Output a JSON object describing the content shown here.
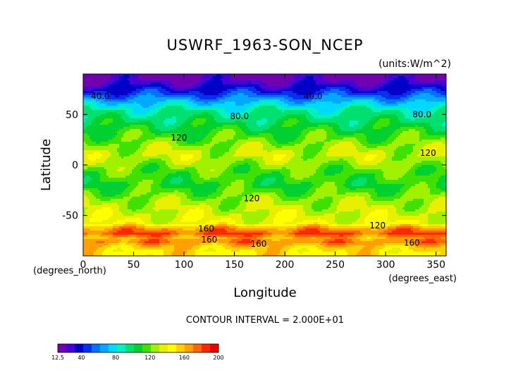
{
  "chart_data": {
    "type": "heatmap",
    "title": "USWRF_1963-SON_NCEP",
    "units": "(units:W/m^2)",
    "xlabel": "Longitude",
    "ylabel": "Latitude",
    "x_unit_label": "(degrees_east)",
    "y_unit_label": "(degrees_north)",
    "xlim": [
      0,
      360
    ],
    "ylim": [
      -90,
      90
    ],
    "xticks": [
      "0",
      "50",
      "100",
      "150",
      "200",
      "250",
      "300",
      "350"
    ],
    "yticks": [
      "50",
      "0",
      "-50"
    ],
    "footer": "CONTOUR INTERVAL = 2.000E+01",
    "contour_labels": [
      {
        "text": "40.0",
        "lon": 17,
        "lat": 68
      },
      {
        "text": "40.0",
        "lon": 228,
        "lat": 68
      },
      {
        "text": "80.0",
        "lon": 155,
        "lat": 48
      },
      {
        "text": "80.0",
        "lon": 336,
        "lat": 50
      },
      {
        "text": "120",
        "lon": 95,
        "lat": 27
      },
      {
        "text": "120",
        "lon": 342,
        "lat": 12
      },
      {
        "text": "120",
        "lon": 167,
        "lat": -33
      },
      {
        "text": "120",
        "lon": 292,
        "lat": -60
      },
      {
        "text": "160",
        "lon": 122,
        "lat": -63
      },
      {
        "text": "160",
        "lon": 125,
        "lat": -74
      },
      {
        "text": "160",
        "lon": 174,
        "lat": -78
      },
      {
        "text": "160",
        "lon": 326,
        "lat": -77
      }
    ],
    "colorbar": {
      "tick_labels": [
        "12.5",
        "40",
        "80",
        "120",
        "160",
        "200"
      ],
      "tick_values": [
        12.5,
        40,
        80,
        120,
        160,
        200
      ],
      "min": 12.5,
      "max": 200,
      "colors": [
        "#7000b0",
        "#4800d8",
        "#0000c8",
        "#0030f0",
        "#0070ff",
        "#00a8ff",
        "#00d8ff",
        "#00f0c0",
        "#00e070",
        "#00d030",
        "#40e000",
        "#a0f000",
        "#e8f000",
        "#ffff00",
        "#ffd000",
        "#ffa000",
        "#ff6800",
        "#ff2800",
        "#e80000"
      ]
    },
    "field_by_latitude": {
      "lat": [
        85,
        78,
        70,
        62,
        55,
        48,
        40,
        32,
        25,
        18,
        10,
        3,
        -5,
        -12,
        -20,
        -28,
        -35,
        -42,
        -50,
        -58,
        -63,
        -68,
        -72,
        -76,
        -80,
        -85
      ],
      "value": [
        20,
        32,
        50,
        72,
        88,
        96,
        104,
        112,
        118,
        126,
        132,
        126,
        118,
        114,
        110,
        118,
        126,
        130,
        134,
        140,
        168,
        180,
        162,
        172,
        158,
        150
      ]
    }
  }
}
